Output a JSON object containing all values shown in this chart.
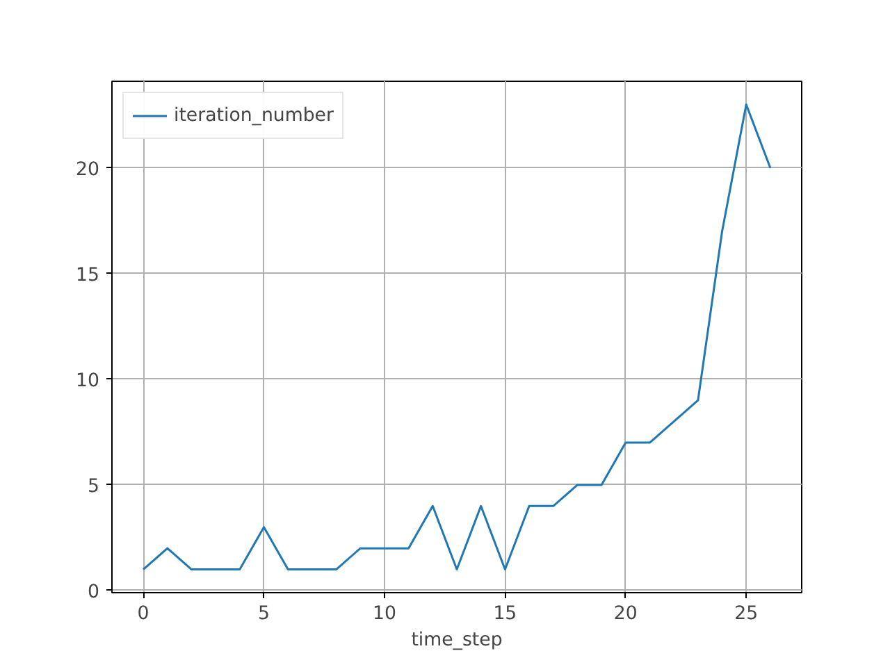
{
  "chart_data": {
    "type": "line",
    "xlabel": "time_step",
    "x": [
      0,
      1,
      2,
      3,
      4,
      5,
      6,
      7,
      8,
      9,
      10,
      11,
      12,
      13,
      14,
      15,
      16,
      17,
      18,
      19,
      20,
      21,
      22,
      23,
      24,
      25,
      26
    ],
    "series": [
      {
        "name": "iteration_number",
        "color": "#1f77b4",
        "values": [
          1,
          2,
          1,
          1,
          1,
          3,
          1,
          1,
          1,
          2,
          2,
          2,
          4,
          1,
          4,
          1,
          4,
          4,
          5,
          5,
          7,
          7,
          8,
          9,
          17,
          23,
          20
        ]
      }
    ],
    "xlim": [
      -1.3,
      27.3
    ],
    "ylim": [
      -0.1,
      24.1
    ],
    "xticks": [
      0,
      5,
      10,
      15,
      20,
      25
    ],
    "yticks": [
      0,
      5,
      10,
      15,
      20
    ],
    "grid": true,
    "legend": "top left",
    "marker": "none",
    "line_style": "solid"
  }
}
